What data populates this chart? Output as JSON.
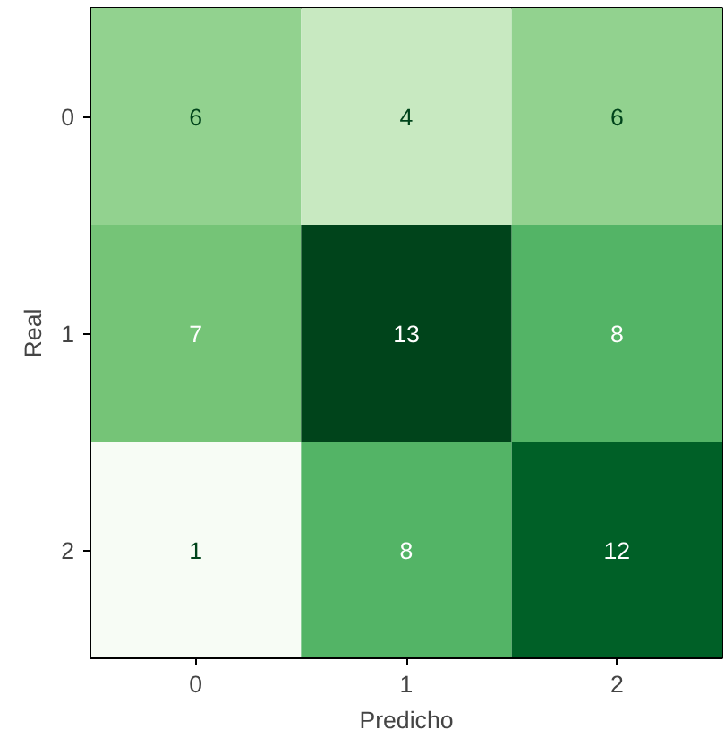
{
  "chart_data": {
    "type": "heatmap",
    "xlabel": "Predicho",
    "ylabel": "Real",
    "categories": [
      "0",
      "1",
      "2"
    ],
    "y_categories": [
      "0",
      "1",
      "2"
    ],
    "cells": [
      [
        6,
        4,
        6
      ],
      [
        7,
        13,
        8
      ],
      [
        1,
        8,
        12
      ]
    ],
    "data_labels": true,
    "grid": false
  }
}
